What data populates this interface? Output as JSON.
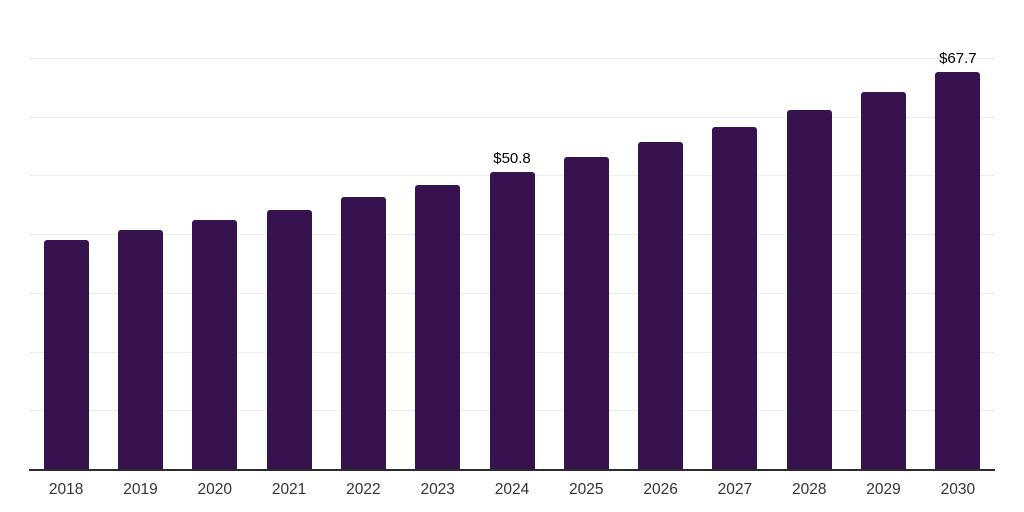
{
  "chart_data": {
    "type": "bar",
    "title": "",
    "xlabel": "",
    "ylabel": "",
    "categories": [
      "2018",
      "2019",
      "2020",
      "2021",
      "2022",
      "2023",
      "2024",
      "2025",
      "2026",
      "2027",
      "2028",
      "2029",
      "2030"
    ],
    "values": [
      39.2,
      40.9,
      42.6,
      44.3,
      46.4,
      48.5,
      50.8,
      53.2,
      55.8,
      58.4,
      61.3,
      64.4,
      67.7
    ],
    "data_labels": {
      "2024": "$50.8",
      "2030": "$67.7"
    },
    "ylim": [
      0,
      80
    ],
    "gridline_step": 10,
    "grid": "horizontal",
    "legend": "none",
    "colors": {
      "bar": "#36124E",
      "gridline": "#ececec",
      "axis_line": "#2b2b2b",
      "tick_label": "#333333",
      "value_label": "#000000",
      "background": "#ffffff"
    }
  }
}
